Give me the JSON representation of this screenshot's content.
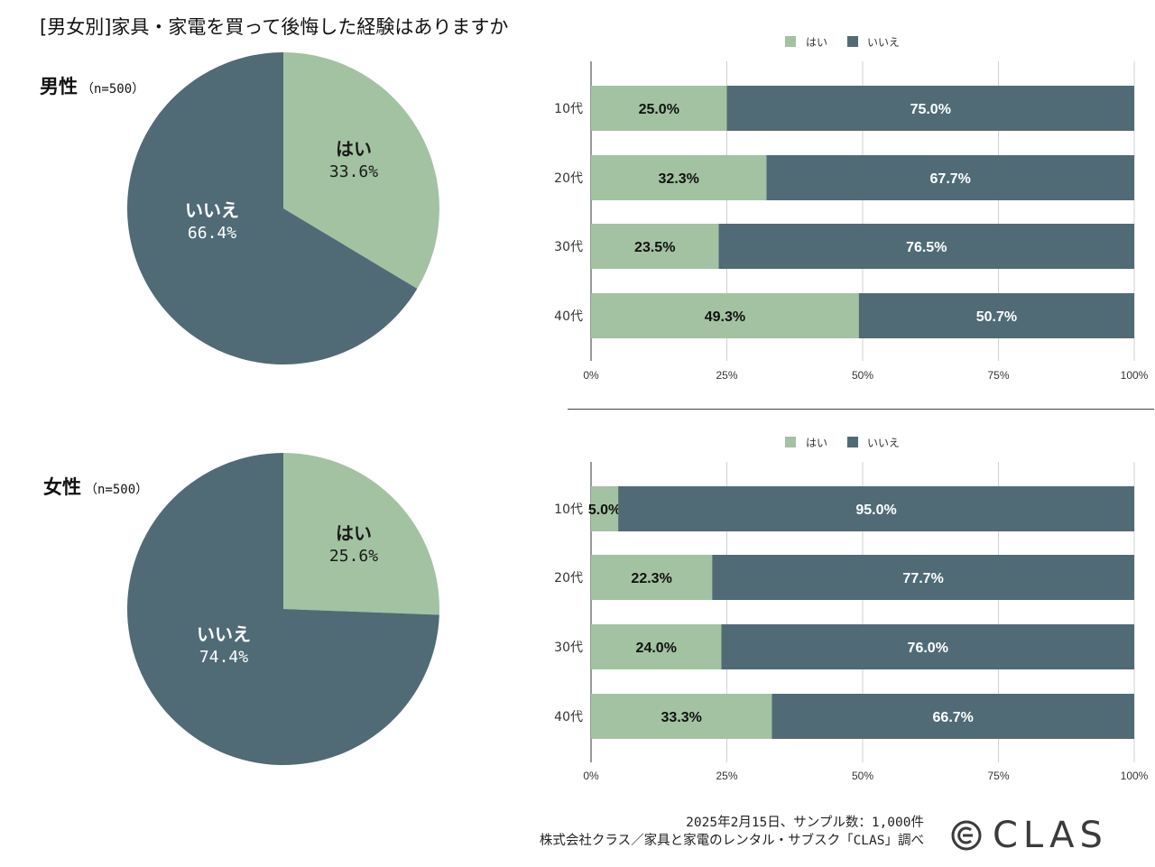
{
  "title": "[男女別]家具・家電を買って後悔した経験はありますか",
  "colors": {
    "yes": "#a3c2a2",
    "no": "#506b76",
    "grid": "#d0d0d0",
    "axis": "#333333"
  },
  "chart_data": [
    {
      "type": "pie",
      "title": "男性",
      "sample": "（n=500）",
      "slices": [
        {
          "label": "はい",
          "value": 33.6,
          "text": "33.6%"
        },
        {
          "label": "いいえ",
          "value": 66.4,
          "text": "66.4%"
        }
      ]
    },
    {
      "type": "bar",
      "orientation": "horizontal-stacked-100",
      "legend": [
        "はい",
        "いいえ"
      ],
      "legend_position": "top",
      "categories": [
        "10代",
        "20代",
        "30代",
        "40代"
      ],
      "series": [
        {
          "name": "はい",
          "values": [
            25.0,
            32.3,
            23.5,
            49.3
          ],
          "labels": [
            "25.0%",
            "32.3%",
            "23.5%",
            "49.3%"
          ]
        },
        {
          "name": "いいえ",
          "values": [
            75.0,
            67.7,
            76.5,
            50.7
          ],
          "labels": [
            "75.0%",
            "67.7%",
            "76.5%",
            "50.7%"
          ]
        }
      ],
      "xticks": [
        "0%",
        "25%",
        "50%",
        "75%",
        "100%"
      ],
      "xlim": [
        0,
        100
      ]
    },
    {
      "type": "pie",
      "title": "女性",
      "sample": "（n=500）",
      "slices": [
        {
          "label": "はい",
          "value": 25.6,
          "text": "25.6%"
        },
        {
          "label": "いいえ",
          "value": 74.4,
          "text": "74.4%"
        }
      ]
    },
    {
      "type": "bar",
      "orientation": "horizontal-stacked-100",
      "legend": [
        "はい",
        "いいえ"
      ],
      "legend_position": "top",
      "categories": [
        "10代",
        "20代",
        "30代",
        "40代"
      ],
      "series": [
        {
          "name": "はい",
          "values": [
            5.0,
            22.3,
            24.0,
            33.3
          ],
          "labels": [
            "5.0%",
            "22.3%",
            "24.0%",
            "33.3%"
          ]
        },
        {
          "name": "いいえ",
          "values": [
            95.0,
            77.7,
            76.0,
            66.7
          ],
          "labels": [
            "95.0%",
            "77.7%",
            "76.0%",
            "66.7%"
          ]
        }
      ],
      "xticks": [
        "0%",
        "25%",
        "50%",
        "75%",
        "100%"
      ],
      "xlim": [
        0,
        100
      ]
    }
  ],
  "footer": {
    "line1": "2025年2月15日、サンプル数：1,000件",
    "line2": "株式会社クラス／家具と家電のレンタル・サブスク「CLAS」調べ"
  },
  "logo": {
    "text": "CLAS"
  }
}
